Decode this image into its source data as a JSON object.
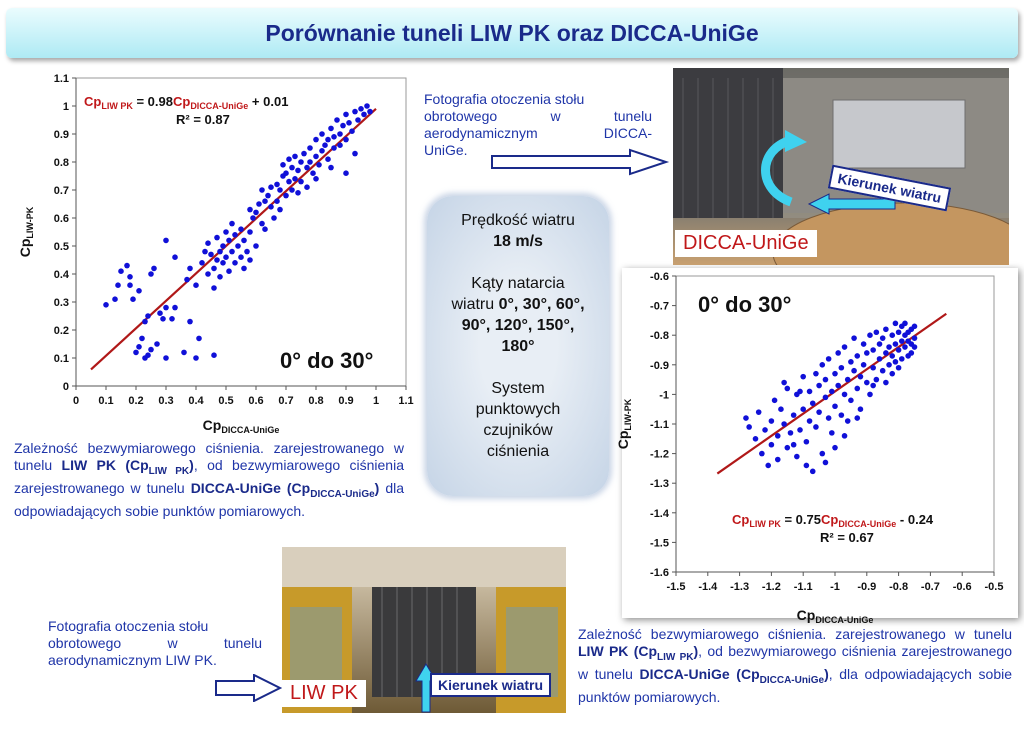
{
  "title": "Porównanie tuneli LIW PK oraz DICCA-UniGe",
  "chart_data": [
    {
      "type": "scatter",
      "xlabel": "Cp",
      "xlabel_sub": "DICCA-UniGe",
      "ylabel": "Cp",
      "ylabel_sub": "LIW-PK",
      "xlim": [
        0,
        1.1
      ],
      "ylim": [
        0,
        1.1
      ],
      "xticks": [
        "0",
        "0.1",
        "0.2",
        "0.3",
        "0.4",
        "0.5",
        "0.6",
        "0.7",
        "0.8",
        "0.9",
        "1",
        "1.1"
      ],
      "yticks": [
        "0",
        "0.1",
        "0.2",
        "0.3",
        "0.4",
        "0.5",
        "0.6",
        "0.7",
        "0.8",
        "0.9",
        "1",
        "1.1"
      ],
      "angle_label": "0° do 30°",
      "eq_lhs": "Cp",
      "eq_lhs_sub": "LIW PK",
      "eq_mid": " = 0.98",
      "eq_rhs": "Cp",
      "eq_rhs_sub": "DICCA-UniGe",
      "eq_end": " + 0.01",
      "r2": "R² = 0.87",
      "trendline": {
        "slope": 0.98,
        "intercept": 0.01,
        "x_range": [
          0.05,
          1.0
        ]
      },
      "grid": false,
      "point_color": "#1010d8",
      "line_color": "#b01818",
      "points": [
        [
          0.1,
          0.29
        ],
        [
          0.13,
          0.31
        ],
        [
          0.14,
          0.36
        ],
        [
          0.15,
          0.41
        ],
        [
          0.17,
          0.43
        ],
        [
          0.18,
          0.39
        ],
        [
          0.18,
          0.36
        ],
        [
          0.19,
          0.31
        ],
        [
          0.21,
          0.34
        ],
        [
          0.25,
          0.4
        ],
        [
          0.26,
          0.42
        ],
        [
          0.2,
          0.12
        ],
        [
          0.21,
          0.14
        ],
        [
          0.22,
          0.17
        ],
        [
          0.23,
          0.1
        ],
        [
          0.24,
          0.11
        ],
        [
          0.25,
          0.13
        ],
        [
          0.27,
          0.15
        ],
        [
          0.3,
          0.1
        ],
        [
          0.36,
          0.12
        ],
        [
          0.4,
          0.1
        ],
        [
          0.46,
          0.11
        ],
        [
          0.23,
          0.23
        ],
        [
          0.24,
          0.25
        ],
        [
          0.28,
          0.26
        ],
        [
          0.29,
          0.24
        ],
        [
          0.3,
          0.28
        ],
        [
          0.33,
          0.28
        ],
        [
          0.32,
          0.24
        ],
        [
          0.38,
          0.23
        ],
        [
          0.41,
          0.17
        ],
        [
          0.3,
          0.52
        ],
        [
          0.33,
          0.46
        ],
        [
          0.37,
          0.38
        ],
        [
          0.38,
          0.42
        ],
        [
          0.4,
          0.36
        ],
        [
          0.42,
          0.44
        ],
        [
          0.43,
          0.48
        ],
        [
          0.44,
          0.4
        ],
        [
          0.44,
          0.51
        ],
        [
          0.45,
          0.47
        ],
        [
          0.46,
          0.35
        ],
        [
          0.46,
          0.42
        ],
        [
          0.47,
          0.53
        ],
        [
          0.47,
          0.45
        ],
        [
          0.48,
          0.39
        ],
        [
          0.48,
          0.48
        ],
        [
          0.49,
          0.44
        ],
        [
          0.49,
          0.5
        ],
        [
          0.5,
          0.46
        ],
        [
          0.5,
          0.55
        ],
        [
          0.51,
          0.41
        ],
        [
          0.51,
          0.52
        ],
        [
          0.52,
          0.48
        ],
        [
          0.52,
          0.58
        ],
        [
          0.53,
          0.44
        ],
        [
          0.53,
          0.54
        ],
        [
          0.54,
          0.5
        ],
        [
          0.55,
          0.46
        ],
        [
          0.55,
          0.56
        ],
        [
          0.56,
          0.52
        ],
        [
          0.56,
          0.42
        ],
        [
          0.57,
          0.48
        ],
        [
          0.58,
          0.55
        ],
        [
          0.58,
          0.45
        ],
        [
          0.59,
          0.6
        ],
        [
          0.6,
          0.62
        ],
        [
          0.6,
          0.5
        ],
        [
          0.61,
          0.65
        ],
        [
          0.62,
          0.58
        ],
        [
          0.63,
          0.66
        ],
        [
          0.63,
          0.56
        ],
        [
          0.64,
          0.68
        ],
        [
          0.65,
          0.71
        ],
        [
          0.65,
          0.64
        ],
        [
          0.66,
          0.6
        ],
        [
          0.67,
          0.72
        ],
        [
          0.67,
          0.66
        ],
        [
          0.68,
          0.63
        ],
        [
          0.68,
          0.7
        ],
        [
          0.69,
          0.75
        ],
        [
          0.69,
          0.79
        ],
        [
          0.7,
          0.68
        ],
        [
          0.7,
          0.76
        ],
        [
          0.71,
          0.73
        ],
        [
          0.71,
          0.81
        ],
        [
          0.72,
          0.7
        ],
        [
          0.72,
          0.78
        ],
        [
          0.73,
          0.74
        ],
        [
          0.73,
          0.82
        ],
        [
          0.74,
          0.77
        ],
        [
          0.74,
          0.69
        ],
        [
          0.75,
          0.8
        ],
        [
          0.75,
          0.73
        ],
        [
          0.76,
          0.83
        ],
        [
          0.77,
          0.78
        ],
        [
          0.77,
          0.71
        ],
        [
          0.78,
          0.8
        ],
        [
          0.78,
          0.85
        ],
        [
          0.79,
          0.76
        ],
        [
          0.8,
          0.82
        ],
        [
          0.8,
          0.88
        ],
        [
          0.81,
          0.79
        ],
        [
          0.82,
          0.84
        ],
        [
          0.82,
          0.9
        ],
        [
          0.83,
          0.86
        ],
        [
          0.84,
          0.81
        ],
        [
          0.84,
          0.88
        ],
        [
          0.85,
          0.92
        ],
        [
          0.86,
          0.85
        ],
        [
          0.86,
          0.89
        ],
        [
          0.87,
          0.95
        ],
        [
          0.88,
          0.9
        ],
        [
          0.88,
          0.86
        ],
        [
          0.89,
          0.93
        ],
        [
          0.9,
          0.97
        ],
        [
          0.9,
          0.88
        ],
        [
          0.91,
          0.94
        ],
        [
          0.92,
          0.91
        ],
        [
          0.93,
          0.98
        ],
        [
          0.94,
          0.95
        ],
        [
          0.95,
          0.99
        ],
        [
          0.96,
          0.97
        ],
        [
          0.97,
          1.0
        ],
        [
          0.98,
          0.98
        ],
        [
          0.9,
          0.76
        ],
        [
          0.85,
          0.78
        ],
        [
          0.8,
          0.74
        ],
        [
          0.93,
          0.83
        ],
        [
          0.62,
          0.7
        ],
        [
          0.58,
          0.63
        ]
      ]
    },
    {
      "type": "scatter",
      "xlabel": "Cp",
      "xlabel_sub": "DICCA-UniGe",
      "ylabel": "Cp",
      "ylabel_sub": "LIW-PK",
      "xlim": [
        -1.5,
        -0.5
      ],
      "ylim": [
        -1.6,
        -0.6
      ],
      "xticks": [
        "-1.5",
        "-1.4",
        "-1.3",
        "-1.2",
        "-1.1",
        "-1",
        "-0.9",
        "-0.8",
        "-0.7",
        "-0.6",
        "-0.5"
      ],
      "yticks": [
        "-0.6",
        "-0.7",
        "-0.8",
        "-0.9",
        "-1",
        "-1.1",
        "-1.2",
        "-1.3",
        "-1.4",
        "-1.5",
        "-1.6"
      ],
      "angle_label": "0° do 30°",
      "eq_lhs": "Cp",
      "eq_lhs_sub": "LIW PK",
      "eq_mid": " = 0.75",
      "eq_rhs": "Cp",
      "eq_rhs_sub": "DICCA-UniGe",
      "eq_end": " - 0.24",
      "r2": "R² = 0.67",
      "trendline": {
        "slope": 0.75,
        "intercept": -0.24,
        "x_range": [
          -1.37,
          -0.65
        ]
      },
      "grid": false,
      "point_color": "#1010d8",
      "line_color": "#b01818",
      "points": [
        [
          -1.28,
          -1.08
        ],
        [
          -1.27,
          -1.11
        ],
        [
          -1.25,
          -1.15
        ],
        [
          -1.24,
          -1.06
        ],
        [
          -1.23,
          -1.2
        ],
        [
          -1.22,
          -1.12
        ],
        [
          -1.21,
          -1.24
        ],
        [
          -1.2,
          -1.09
        ],
        [
          -1.2,
          -1.17
        ],
        [
          -1.19,
          -1.02
        ],
        [
          -1.18,
          -1.14
        ],
        [
          -1.18,
          -1.22
        ],
        [
          -1.17,
          -1.05
        ],
        [
          -1.16,
          -1.1
        ],
        [
          -1.15,
          -1.18
        ],
        [
          -1.15,
          -0.98
        ],
        [
          -1.14,
          -1.13
        ],
        [
          -1.13,
          -1.07
        ],
        [
          -1.12,
          -1.21
        ],
        [
          -1.12,
          -1.0
        ],
        [
          -1.11,
          -1.12
        ],
        [
          -1.1,
          -1.05
        ],
        [
          -1.1,
          -0.94
        ],
        [
          -1.09,
          -1.16
        ],
        [
          -1.08,
          -1.09
        ],
        [
          -1.08,
          -0.99
        ],
        [
          -1.07,
          -1.03
        ],
        [
          -1.06,
          -1.11
        ],
        [
          -1.06,
          -0.93
        ],
        [
          -1.05,
          -0.97
        ],
        [
          -1.05,
          -1.06
        ],
        [
          -1.04,
          -1.2
        ],
        [
          -1.04,
          -0.9
        ],
        [
          -1.03,
          -1.01
        ],
        [
          -1.03,
          -0.95
        ],
        [
          -1.02,
          -1.08
        ],
        [
          -1.02,
          -0.88
        ],
        [
          -1.01,
          -1.13
        ],
        [
          -1.01,
          -0.99
        ],
        [
          -1.0,
          -0.93
        ],
        [
          -1.0,
          -1.04
        ],
        [
          -0.99,
          -0.86
        ],
        [
          -0.99,
          -0.97
        ],
        [
          -0.98,
          -1.07
        ],
        [
          -0.98,
          -0.91
        ],
        [
          -0.97,
          -1.0
        ],
        [
          -0.97,
          -0.84
        ],
        [
          -0.96,
          -0.95
        ],
        [
          -0.96,
          -1.09
        ],
        [
          -0.95,
          -0.89
        ],
        [
          -0.95,
          -1.02
        ],
        [
          -0.94,
          -0.92
        ],
        [
          -0.94,
          -0.81
        ],
        [
          -0.93,
          -0.98
        ],
        [
          -0.93,
          -0.87
        ],
        [
          -0.92,
          -1.05
        ],
        [
          -0.92,
          -0.94
        ],
        [
          -0.91,
          -0.83
        ],
        [
          -0.91,
          -0.9
        ],
        [
          -0.9,
          -0.96
        ],
        [
          -0.9,
          -0.86
        ],
        [
          -0.89,
          -1.0
        ],
        [
          -0.89,
          -0.8
        ],
        [
          -0.88,
          -0.91
        ],
        [
          -0.88,
          -0.85
        ],
        [
          -0.87,
          -0.95
        ],
        [
          -0.87,
          -0.79
        ],
        [
          -0.86,
          -0.88
        ],
        [
          -0.86,
          -0.83
        ],
        [
          -0.85,
          -0.92
        ],
        [
          -0.85,
          -0.81
        ],
        [
          -0.84,
          -0.86
        ],
        [
          -0.84,
          -0.78
        ],
        [
          -0.83,
          -0.84
        ],
        [
          -0.83,
          -0.9
        ],
        [
          -0.82,
          -0.8
        ],
        [
          -0.82,
          -0.87
        ],
        [
          -0.81,
          -0.76
        ],
        [
          -0.81,
          -0.83
        ],
        [
          -0.81,
          -0.89
        ],
        [
          -0.8,
          -0.79
        ],
        [
          -0.8,
          -0.85
        ],
        [
          -0.8,
          -0.91
        ],
        [
          -0.79,
          -0.77
        ],
        [
          -0.79,
          -0.82
        ],
        [
          -0.79,
          -0.88
        ],
        [
          -0.78,
          -0.8
        ],
        [
          -0.78,
          -0.84
        ],
        [
          -0.78,
          -0.76
        ],
        [
          -0.77,
          -0.82
        ],
        [
          -0.77,
          -0.87
        ],
        [
          -0.77,
          -0.79
        ],
        [
          -0.76,
          -0.83
        ],
        [
          -0.76,
          -0.78
        ],
        [
          -0.76,
          -0.86
        ],
        [
          -0.75,
          -0.81
        ],
        [
          -0.75,
          -0.84
        ],
        [
          -0.75,
          -0.77
        ],
        [
          -0.82,
          -0.93
        ],
        [
          -0.84,
          -0.96
        ],
        [
          -1.07,
          -1.26
        ],
        [
          -1.03,
          -1.23
        ],
        [
          -1.16,
          -0.96
        ],
        [
          -1.11,
          -0.99
        ],
        [
          -0.97,
          -1.14
        ],
        [
          -0.88,
          -0.97
        ],
        [
          -1.0,
          -1.18
        ],
        [
          -1.13,
          -1.17
        ],
        [
          -0.93,
          -1.08
        ],
        [
          -1.09,
          -1.24
        ]
      ]
    }
  ],
  "photo1": {
    "caption_lines": [
      "Fotografia otoczenia stołu",
      "obrotowego w tunelu",
      "aerodynamicznym DICCA-",
      "UniGe."
    ],
    "tag": "DICCA-UniGe",
    "wind_label": "Kierunek wiatru"
  },
  "photo2": {
    "caption_lines": [
      "Fotografia otoczenia stołu",
      "obrotowego w tunelu",
      "aerodynamicznym LIW PK."
    ],
    "tag": "LIW PK",
    "wind_label": "Kierunek wiatru"
  },
  "info": {
    "speed_label": "Prędkość wiatru",
    "speed_value": "18 m/s",
    "angles_label_1": "Kąty natarcia",
    "angles_label_2": "wiatru",
    "angles_value_1": "0°, 30°, 60°,",
    "angles_value_2": "90°, 120°, 150°,",
    "angles_value_3": "180°",
    "system_1": "System",
    "system_2": "punktowych",
    "system_3": "czujników",
    "system_4": "ciśnienia"
  },
  "para1": {
    "a": "Zależność bezwymiarowego ciśnienia. zarejestrowanego w tunelu ",
    "b1": "LIW PK (Cp",
    "b1_sub": "LIW PK",
    "b1_end": ")",
    "c": ", od bezwymiarowego ciśnienia zarejestrowanego w tunelu ",
    "d1": "DICCA-UniGe (Cp",
    "d1_sub": "DICCA-UniGe",
    "d1_end": ")",
    "e": " dla odpowiadających sobie punktów pomiarowych."
  },
  "para2": {
    "a": "Zależność bezwymiarowego ciśnienia. zarejestrowanego w tunelu ",
    "b1": "LIW PK (Cp",
    "b1_sub": "LIW PK",
    "b1_end": ")",
    "c": ", od bezwymiarowego ciśnienia zarejestrowanego w tunelu ",
    "d1": "DICCA-UniGe (Cp",
    "d1_sub": "DICCA-UniGe",
    "d1_end": ")",
    "e": ", dla odpowiadających sobie punktów pomiarowych."
  }
}
